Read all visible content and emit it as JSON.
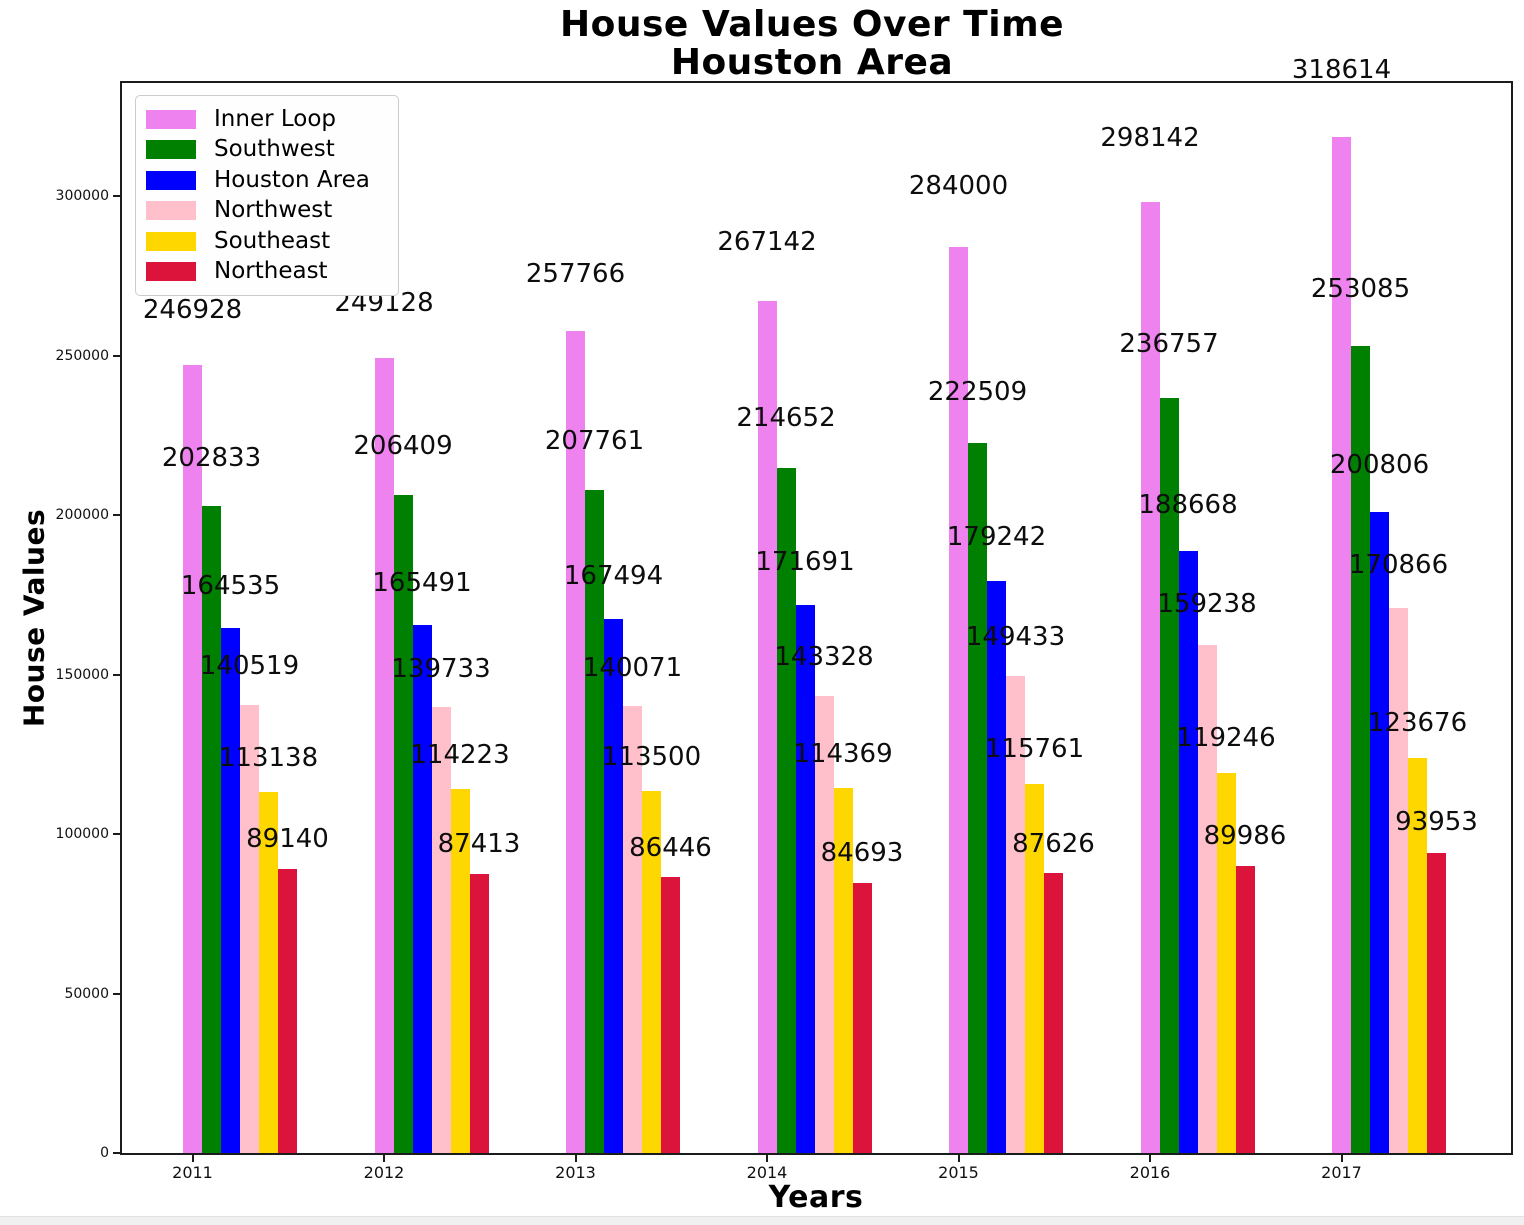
{
  "chart_data": {
    "type": "bar",
    "title": "House Values Over Time",
    "subtitle": "Houston Area",
    "xlabel": "Years",
    "ylabel": "House Values",
    "categories": [
      "2011",
      "2012",
      "2013",
      "2014",
      "2015",
      "2016",
      "2017"
    ],
    "series": [
      {
        "name": "Inner Loop",
        "color": "#EE82EE",
        "values": [
          246928,
          249128,
          257766,
          267142,
          284000,
          298142,
          318614
        ]
      },
      {
        "name": "Southwest",
        "color": "#008000",
        "values": [
          202833,
          206409,
          207761,
          214652,
          222509,
          236757,
          253085
        ]
      },
      {
        "name": "Houston Area",
        "color": "#0000FF",
        "values": [
          164535,
          165491,
          167494,
          171691,
          179242,
          188668,
          200806
        ]
      },
      {
        "name": "Northwest",
        "color": "#FFC0CB",
        "values": [
          140519,
          139733,
          140071,
          143328,
          149433,
          159238,
          170866
        ]
      },
      {
        "name": "Southeast",
        "color": "#FFD700",
        "values": [
          113138,
          114223,
          113500,
          114369,
          115761,
          119246,
          123676
        ]
      },
      {
        "name": "Northeast",
        "color": "#DC143C",
        "values": [
          89140,
          87413,
          86446,
          84693,
          87626,
          89986,
          93953
        ]
      }
    ],
    "yticks": [
      0,
      50000,
      100000,
      150000,
      200000,
      250000,
      300000
    ],
    "ytick_labels": [
      "0",
      "50000",
      "100000",
      "150000",
      "200000",
      "250000",
      "300000"
    ],
    "ylim": [
      0,
      335000
    ],
    "grid": false,
    "legend_position": "upper left",
    "bar_value_labels": true,
    "spine_color": "#1c1c1c"
  }
}
